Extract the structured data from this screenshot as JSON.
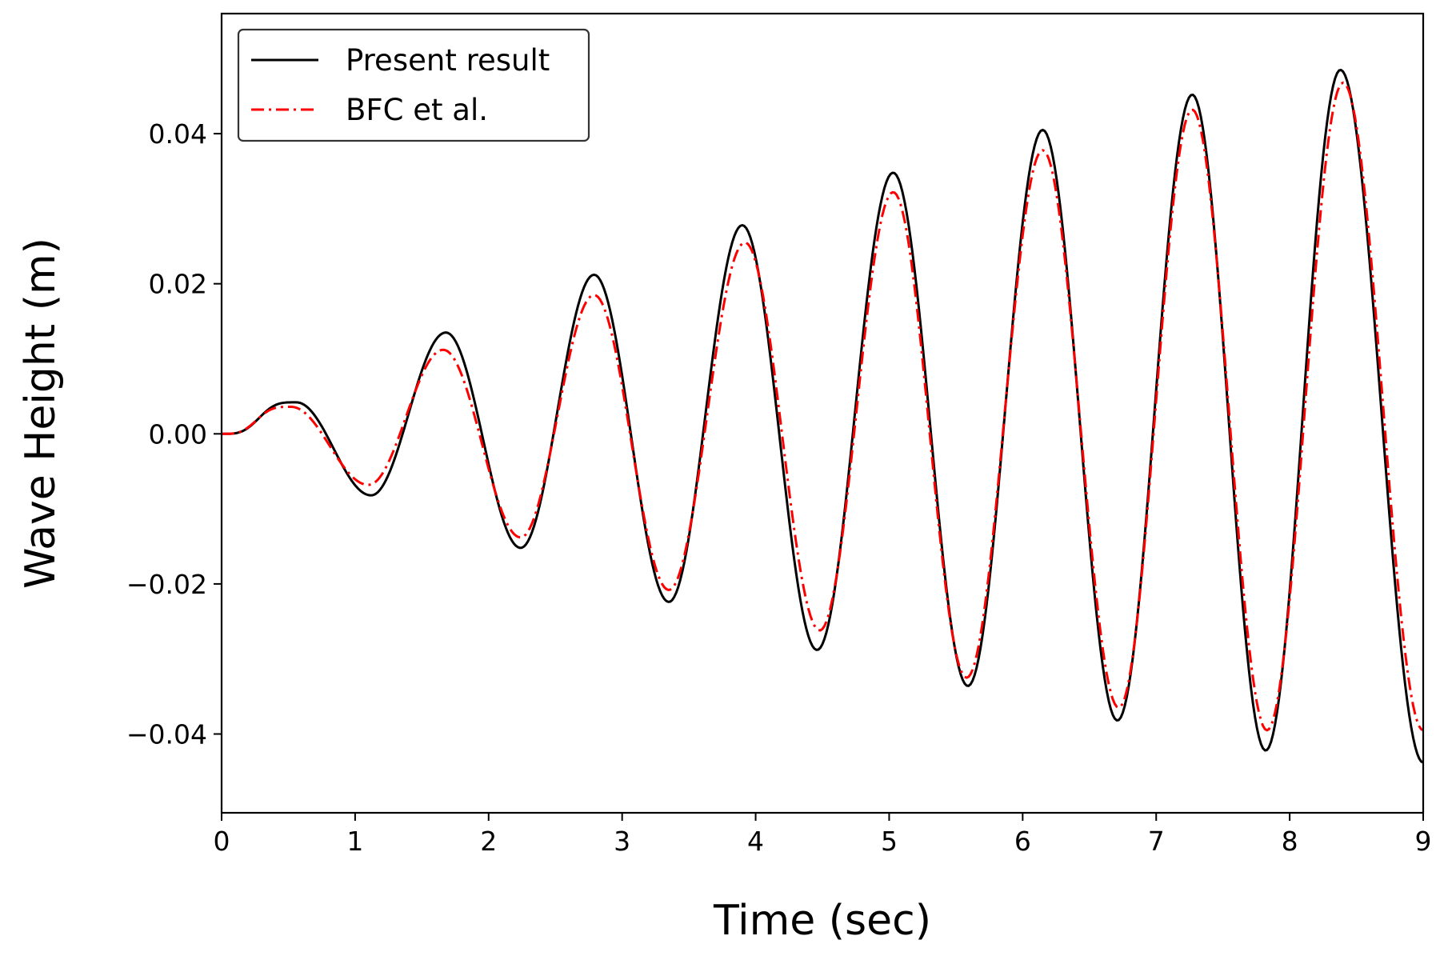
{
  "chart_data": {
    "type": "line",
    "title": "",
    "xlabel": "Time (sec)",
    "ylabel": "Wave Height (m)",
    "xlim": [
      0,
      9
    ],
    "ylim": [
      -0.0505,
      0.056
    ],
    "x_ticks": [
      0,
      1,
      2,
      3,
      4,
      5,
      6,
      7,
      8,
      9
    ],
    "x_tick_labels": [
      "0",
      "1",
      "2",
      "3",
      "4",
      "5",
      "6",
      "7",
      "8",
      "9"
    ],
    "y_ticks": [
      -0.04,
      -0.02,
      0.0,
      0.02,
      0.04
    ],
    "y_tick_labels": [
      "−0.04",
      "−0.02",
      "0.00",
      "0.02",
      "0.04"
    ],
    "grid": false,
    "legend_position": "top-left",
    "series": [
      {
        "name": "Present result",
        "color": "#000000",
        "style": "solid",
        "x": [
          0,
          0.56,
          1.12,
          1.68,
          2.24,
          2.79,
          3.35,
          3.9,
          4.46,
          5.03,
          5.59,
          6.15,
          6.71,
          7.27,
          7.82,
          8.38,
          9.0
        ],
        "y": [
          0,
          0.0042,
          -0.0082,
          0.0135,
          -0.0152,
          0.0212,
          -0.0224,
          0.0278,
          -0.0288,
          0.0348,
          -0.0336,
          0.0405,
          -0.0382,
          0.0452,
          -0.0422,
          0.0485,
          -0.0438
        ]
      },
      {
        "name": "BFC et al.",
        "color": "#ff0000",
        "style": "dashdot",
        "x": [
          0,
          0.52,
          1.1,
          1.66,
          2.24,
          2.79,
          3.35,
          3.92,
          4.48,
          5.03,
          5.58,
          6.15,
          6.72,
          7.27,
          7.83,
          8.4,
          9.0
        ],
        "y": [
          0,
          0.0036,
          -0.0068,
          0.0112,
          -0.0138,
          0.0185,
          -0.0208,
          0.0255,
          -0.0262,
          0.0322,
          -0.0325,
          0.0378,
          -0.0365,
          0.0432,
          -0.0395,
          0.0468,
          -0.0395
        ]
      }
    ]
  }
}
